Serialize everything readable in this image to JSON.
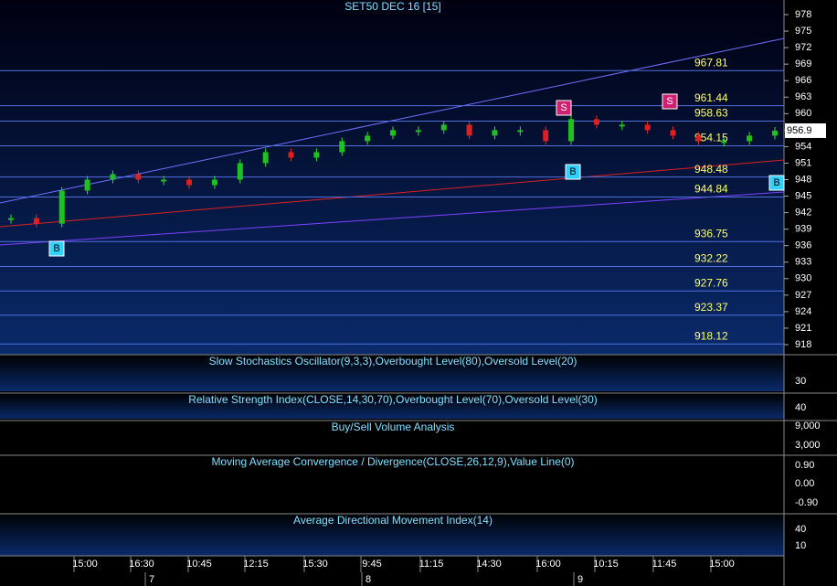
{
  "title": "SET50 DEC 16  [15]",
  "price_axis": {
    "ylim": [
      918,
      978
    ],
    "ticks": [
      978,
      975,
      972,
      969,
      966,
      963,
      960,
      957,
      954,
      951,
      948,
      945,
      942,
      939,
      936,
      933,
      930,
      927,
      924,
      921,
      918
    ]
  },
  "levels": [
    967.81,
    961.44,
    958.63,
    954.15,
    948.48,
    944.84,
    936.75,
    932.22,
    927.76,
    923.37,
    918.12
  ],
  "last_price": 956.9,
  "candles": {
    "close": [
      941,
      940,
      946,
      948,
      949,
      948,
      948,
      947,
      948,
      951,
      953,
      952,
      953,
      955,
      956,
      957,
      957,
      958,
      956,
      957,
      957,
      955,
      959,
      958,
      958,
      957,
      956,
      955,
      955,
      956,
      956.9
    ]
  },
  "signals": [
    "B",
    "S",
    "B",
    "S",
    "B"
  ],
  "panels": [
    {
      "title": "Slow Stochastics Oscillator(9,3,3),Overbought Level(80),Oversold Level(20)",
      "ticks": [
        "30"
      ]
    },
    {
      "title": "Relative Strength Index(CLOSE,14,30,70),Overbought Level(70),Oversold Level(30)",
      "ticks": [
        "40"
      ]
    },
    {
      "title": "Buy/Sell Volume Analysis",
      "ticks": [
        "9,000",
        "3,000"
      ]
    },
    {
      "title": "Moving Average Convergence / Divergence(CLOSE,26,12,9),Value Line(0)",
      "ticks": [
        "0.90",
        "0.00",
        "-0.90"
      ]
    },
    {
      "title": "Average Directional Movement Index(14)",
      "ticks": [
        "40",
        "10"
      ]
    }
  ],
  "time_labels": [
    "15:00",
    "16:30",
    "10:45",
    "12:15",
    "15:30",
    "9:45",
    "11:15",
    "14:30",
    "16:00",
    "10:15",
    "11:45",
    "15:00"
  ],
  "day_labels": [
    "7",
    "8",
    "9"
  ]
}
